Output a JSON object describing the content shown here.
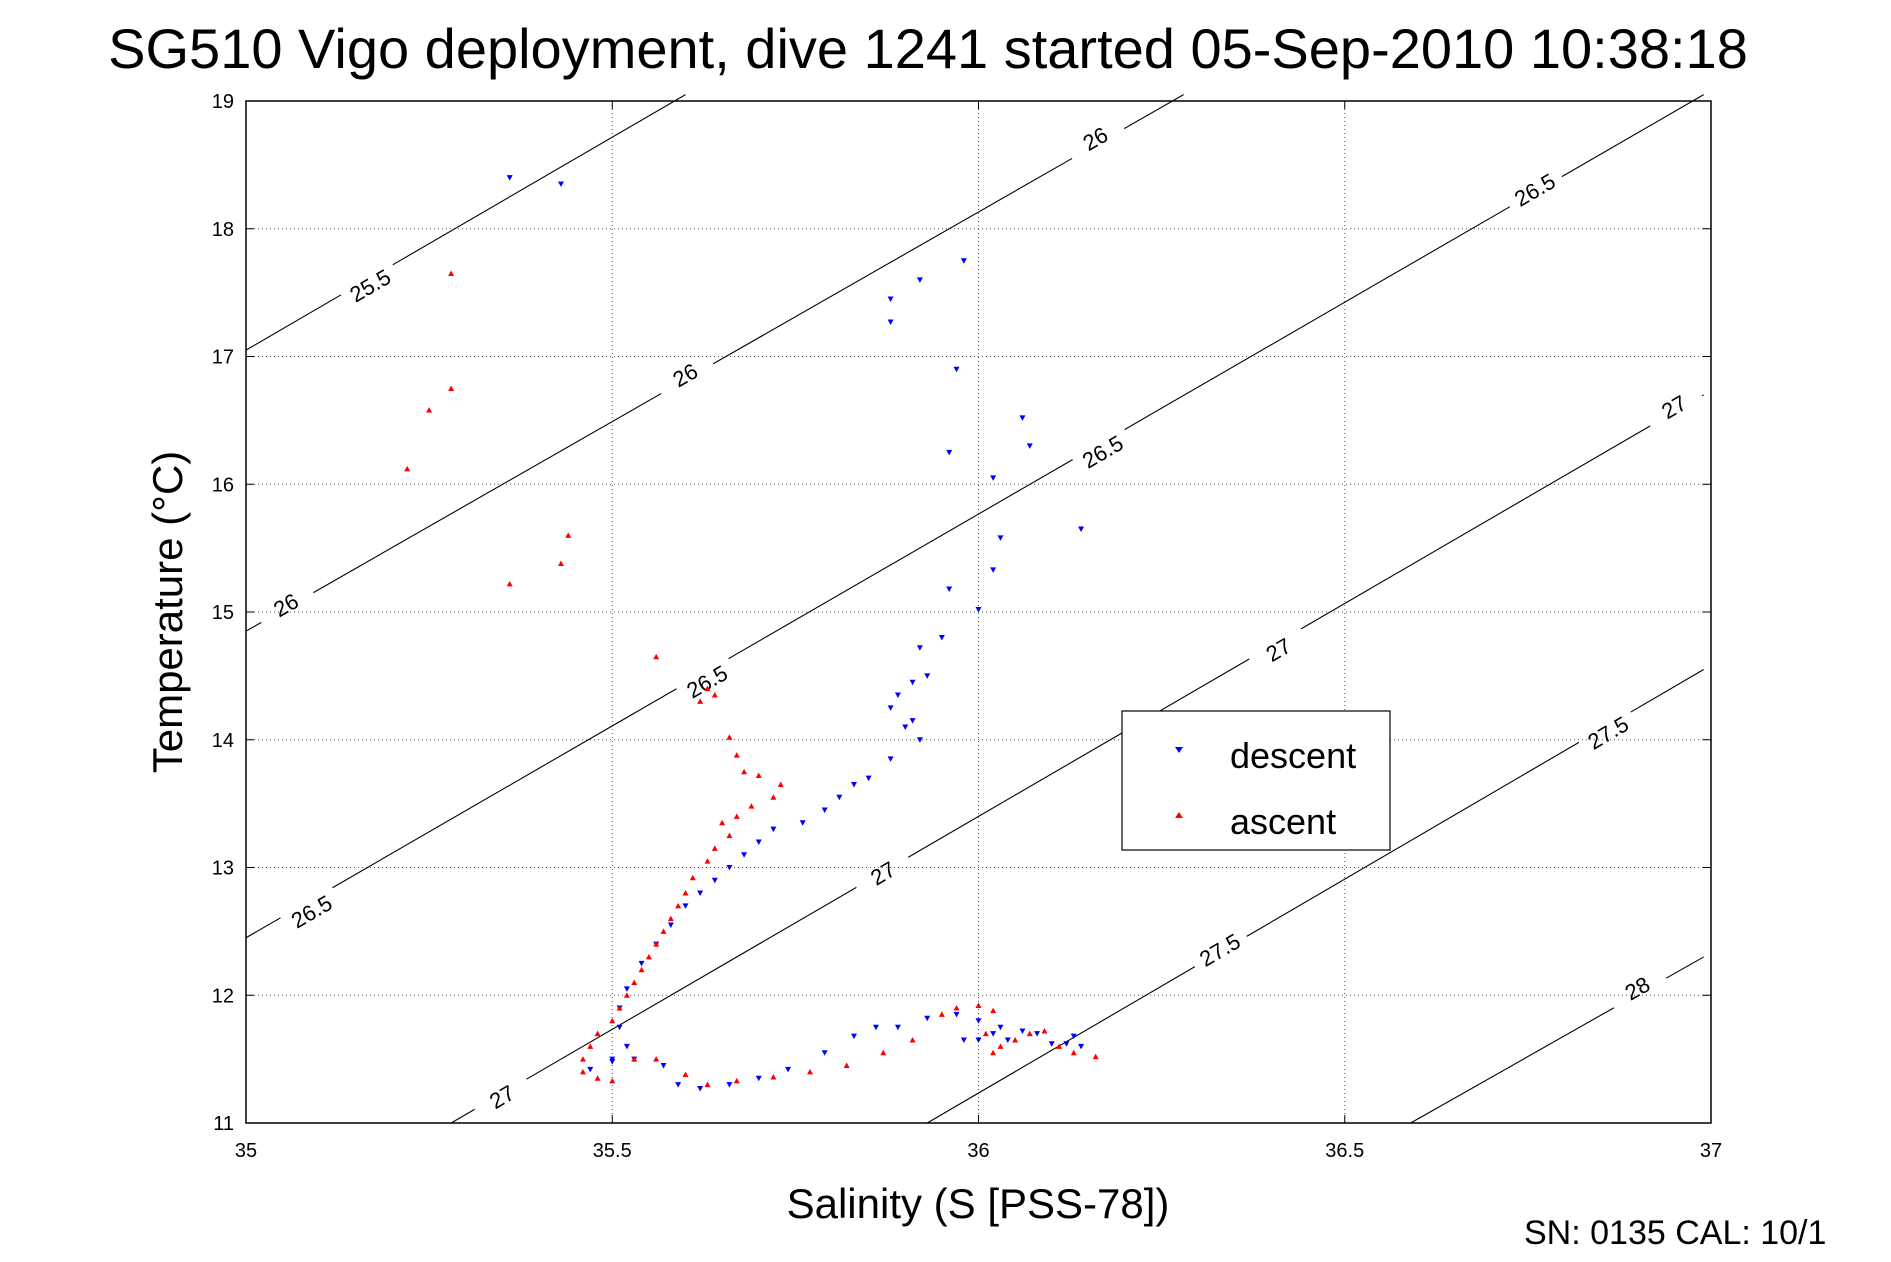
{
  "chart_data": {
    "type": "scatter",
    "title": "SG510 Vigo deployment, dive 1241 started 05-Sep-2010 10:38:18",
    "xlabel": "Salinity (S [PSS-78])",
    "ylabel": "Temperature (°C)",
    "xlim": [
      35,
      37
    ],
    "ylim": [
      11,
      19
    ],
    "xticks": [
      35,
      35.5,
      36,
      36.5,
      37
    ],
    "yticks": [
      11,
      12,
      13,
      14,
      15,
      16,
      17,
      18,
      19
    ],
    "grid": true,
    "legend_position": "center-right",
    "footer": "SN: 0135  CAL: 10/1",
    "contours": [
      {
        "level": "25.5",
        "points": [
          [
            35,
            17.05
          ],
          [
            35.6,
            19.05
          ]
        ],
        "labels": [
          [
            35.17,
            17.55
          ]
        ]
      },
      {
        "level": "26",
        "points": [
          [
            35,
            14.85
          ],
          [
            36.28,
            19.05
          ]
        ],
        "labels": [
          [
            35.055,
            15.05
          ],
          [
            35.6,
            16.85
          ],
          [
            36.16,
            18.7
          ]
        ]
      },
      {
        "level": "26.5",
        "points": [
          [
            35,
            12.45
          ],
          [
            36.99,
            19.05
          ]
        ],
        "labels": [
          [
            35.09,
            12.65
          ],
          [
            35.63,
            14.45
          ],
          [
            36.17,
            16.25
          ],
          [
            36.76,
            18.3
          ]
        ]
      },
      {
        "level": "27",
        "points": [
          [
            35.28,
            11
          ],
          [
            36.99,
            16.7
          ]
        ],
        "labels": [
          [
            35.35,
            11.2
          ],
          [
            35.87,
            12.95
          ],
          [
            36.41,
            14.7
          ],
          [
            36.95,
            16.6
          ]
        ]
      },
      {
        "level": "27.5",
        "points": [
          [
            35.93,
            11
          ],
          [
            36.99,
            14.55
          ]
        ],
        "labels": [
          [
            36.33,
            12.35
          ],
          [
            36.86,
            14.05
          ]
        ]
      },
      {
        "level": "28",
        "points": [
          [
            36.59,
            11
          ],
          [
            36.99,
            12.3
          ]
        ],
        "labels": [
          [
            36.9,
            12.05
          ]
        ]
      }
    ],
    "series": [
      {
        "name": "descent",
        "color": "#0000ff",
        "marker": "triangle-down",
        "points": [
          [
            35.36,
            18.4
          ],
          [
            35.43,
            18.35
          ],
          [
            35.98,
            17.75
          ],
          [
            35.92,
            17.6
          ],
          [
            35.88,
            17.45
          ],
          [
            35.88,
            17.27
          ],
          [
            35.97,
            16.9
          ],
          [
            36.06,
            16.52
          ],
          [
            36.07,
            16.3
          ],
          [
            35.96,
            16.25
          ],
          [
            36.02,
            16.05
          ],
          [
            36.03,
            15.58
          ],
          [
            36.14,
            15.65
          ],
          [
            36.02,
            15.33
          ],
          [
            35.96,
            15.18
          ],
          [
            36.0,
            15.02
          ],
          [
            35.95,
            14.8
          ],
          [
            35.92,
            14.72
          ],
          [
            35.93,
            14.5
          ],
          [
            35.91,
            14.45
          ],
          [
            35.89,
            14.35
          ],
          [
            35.88,
            14.25
          ],
          [
            35.91,
            14.15
          ],
          [
            35.9,
            14.1
          ],
          [
            35.92,
            14.0
          ],
          [
            35.88,
            13.85
          ],
          [
            35.85,
            13.7
          ],
          [
            35.83,
            13.65
          ],
          [
            35.81,
            13.55
          ],
          [
            35.79,
            13.45
          ],
          [
            35.76,
            13.35
          ],
          [
            35.72,
            13.3
          ],
          [
            35.7,
            13.2
          ],
          [
            35.68,
            13.1
          ],
          [
            35.66,
            13.0
          ],
          [
            35.64,
            12.9
          ],
          [
            35.62,
            12.8
          ],
          [
            35.6,
            12.7
          ],
          [
            35.58,
            12.55
          ],
          [
            35.56,
            12.4
          ],
          [
            35.54,
            12.25
          ],
          [
            35.52,
            12.05
          ],
          [
            35.51,
            11.9
          ],
          [
            35.51,
            11.75
          ],
          [
            35.52,
            11.6
          ],
          [
            35.5,
            11.5
          ],
          [
            35.47,
            11.42
          ],
          [
            35.5,
            11.48
          ],
          [
            35.53,
            11.5
          ],
          [
            35.57,
            11.45
          ],
          [
            35.59,
            11.3
          ],
          [
            35.62,
            11.27
          ],
          [
            35.66,
            11.3
          ],
          [
            35.7,
            11.35
          ],
          [
            35.74,
            11.42
          ],
          [
            35.79,
            11.55
          ],
          [
            35.83,
            11.68
          ],
          [
            35.86,
            11.75
          ],
          [
            35.89,
            11.75
          ],
          [
            35.93,
            11.82
          ],
          [
            35.97,
            11.85
          ],
          [
            36.0,
            11.8
          ],
          [
            36.03,
            11.75
          ],
          [
            36.06,
            11.72
          ],
          [
            36.08,
            11.7
          ],
          [
            36.1,
            11.62
          ],
          [
            36.12,
            11.62
          ],
          [
            36.13,
            11.68
          ],
          [
            36.14,
            11.6
          ],
          [
            36.0,
            11.65
          ],
          [
            36.02,
            11.7
          ],
          [
            35.98,
            11.65
          ],
          [
            36.04,
            11.65
          ]
        ]
      },
      {
        "name": "ascent",
        "color": "#ff0000",
        "marker": "triangle-up",
        "points": [
          [
            35.28,
            17.65
          ],
          [
            35.28,
            16.75
          ],
          [
            35.25,
            16.58
          ],
          [
            35.22,
            16.12
          ],
          [
            35.44,
            15.6
          ],
          [
            35.43,
            15.38
          ],
          [
            35.36,
            15.22
          ],
          [
            35.56,
            14.65
          ],
          [
            35.63,
            14.4
          ],
          [
            35.64,
            14.35
          ],
          [
            35.62,
            14.3
          ],
          [
            35.66,
            14.02
          ],
          [
            35.67,
            13.88
          ],
          [
            35.68,
            13.75
          ],
          [
            35.7,
            13.72
          ],
          [
            35.73,
            13.65
          ],
          [
            35.72,
            13.55
          ],
          [
            35.69,
            13.48
          ],
          [
            35.67,
            13.4
          ],
          [
            35.65,
            13.35
          ],
          [
            35.66,
            13.25
          ],
          [
            35.64,
            13.15
          ],
          [
            35.63,
            13.05
          ],
          [
            35.61,
            12.92
          ],
          [
            35.6,
            12.8
          ],
          [
            35.59,
            12.7
          ],
          [
            35.58,
            12.6
          ],
          [
            35.57,
            12.5
          ],
          [
            35.56,
            12.4
          ],
          [
            35.55,
            12.3
          ],
          [
            35.54,
            12.2
          ],
          [
            35.53,
            12.1
          ],
          [
            35.52,
            12.0
          ],
          [
            35.51,
            11.9
          ],
          [
            35.5,
            11.8
          ],
          [
            35.48,
            11.7
          ],
          [
            35.47,
            11.6
          ],
          [
            35.46,
            11.5
          ],
          [
            35.46,
            11.4
          ],
          [
            35.48,
            11.35
          ],
          [
            35.5,
            11.33
          ],
          [
            35.53,
            11.5
          ],
          [
            35.56,
            11.5
          ],
          [
            35.6,
            11.38
          ],
          [
            35.63,
            11.3
          ],
          [
            35.67,
            11.33
          ],
          [
            35.72,
            11.36
          ],
          [
            35.77,
            11.4
          ],
          [
            35.82,
            11.45
          ],
          [
            35.87,
            11.55
          ],
          [
            35.91,
            11.65
          ],
          [
            35.95,
            11.85
          ],
          [
            35.97,
            11.9
          ],
          [
            36.0,
            11.92
          ],
          [
            36.02,
            11.88
          ],
          [
            36.03,
            11.6
          ],
          [
            36.05,
            11.65
          ],
          [
            36.07,
            11.7
          ],
          [
            36.09,
            11.72
          ],
          [
            36.11,
            11.6
          ],
          [
            36.13,
            11.55
          ],
          [
            36.16,
            11.52
          ],
          [
            36.02,
            11.55
          ],
          [
            36.01,
            11.7
          ]
        ]
      }
    ]
  }
}
